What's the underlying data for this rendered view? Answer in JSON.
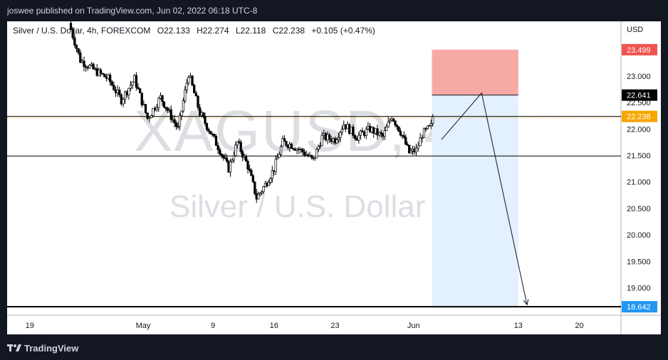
{
  "header": {
    "published": "joswee published on TradingView.com, Jun 02, 2022 06:18 UTC-8"
  },
  "legend": {
    "symbol": "Silver / U.S. Dollar, 4h, FOREXCOM",
    "open": "O22.133",
    "high": "H22.274",
    "low": "L22.118",
    "close": "C22.238",
    "change": "+0.105 (+0.47%)"
  },
  "watermark": {
    "ticker": "XAGUSD, 4h",
    "name": "Silver / U.S. Dollar"
  },
  "footer": {
    "brand": "TradingView",
    "logo_icon": "tradingview-logo-icon"
  },
  "chart_data": {
    "type": "candlestick",
    "currency": "USD",
    "ylim": [
      18.55,
      23.9
    ],
    "yticks": [
      23.0,
      22.5,
      22.0,
      21.5,
      21.0,
      20.5,
      20.0,
      19.5,
      19.0
    ],
    "ytick_labels": [
      "23.000",
      "22.500",
      "22.000",
      "21.500",
      "21.000",
      "20.500",
      "20.000",
      "19.500",
      "19.000"
    ],
    "xticks": [
      {
        "label": "19",
        "day": -12
      },
      {
        "label": "May",
        "day": 1
      },
      {
        "label": "9",
        "day": 9
      },
      {
        "label": "16",
        "day": 16
      },
      {
        "label": "23",
        "day": 23
      },
      {
        "label": "Jun",
        "day": 32
      },
      {
        "label": "13",
        "day": 44
      },
      {
        "label": "20",
        "day": 51
      }
    ],
    "price_labels": [
      {
        "text": "23.499",
        "value": 23.499,
        "color": "#ef5350"
      },
      {
        "text": "22.641",
        "value": 22.641,
        "color": "#000000"
      },
      {
        "text": "22.238",
        "value": 22.238,
        "color": "#f7a600"
      },
      {
        "text": "18.642",
        "value": 18.642,
        "color": "#2196f3"
      }
    ],
    "horizontal_lines": [
      22.238,
      21.49,
      18.642
    ],
    "short_position": {
      "entry": 22.641,
      "stop": 23.499,
      "target": 18.642,
      "start_day": 34.1,
      "end_day": 44.0,
      "stop_color": "#f7a9a6",
      "target_color": "#e3f0fd"
    },
    "projection_path": [
      {
        "day": 35.2,
        "price": 21.8
      },
      {
        "day": 39.8,
        "price": 22.68
      },
      {
        "day": 45.0,
        "price": 18.68
      }
    ],
    "price_path": [
      {
        "day": -7.5,
        "price": 24.0
      },
      {
        "day": -6.2,
        "price": 23.3
      },
      {
        "day": -4.5,
        "price": 23.1
      },
      {
        "day": -3.0,
        "price": 22.95
      },
      {
        "day": -1.5,
        "price": 22.55
      },
      {
        "day": 0.0,
        "price": 22.95
      },
      {
        "day": 1.5,
        "price": 22.2
      },
      {
        "day": 3.0,
        "price": 22.6
      },
      {
        "day": 4.0,
        "price": 22.3
      },
      {
        "day": 5.0,
        "price": 22.0
      },
      {
        "day": 6.2,
        "price": 23.05
      },
      {
        "day": 7.5,
        "price": 22.3
      },
      {
        "day": 8.5,
        "price": 22.0
      },
      {
        "day": 9.8,
        "price": 21.6
      },
      {
        "day": 10.8,
        "price": 21.25
      },
      {
        "day": 11.8,
        "price": 21.75
      },
      {
        "day": 13.0,
        "price": 21.3
      },
      {
        "day": 14.0,
        "price": 20.7
      },
      {
        "day": 15.0,
        "price": 20.95
      },
      {
        "day": 16.0,
        "price": 21.25
      },
      {
        "day": 17.0,
        "price": 21.75
      },
      {
        "day": 18.0,
        "price": 21.7
      },
      {
        "day": 19.5,
        "price": 21.55
      },
      {
        "day": 20.5,
        "price": 21.4
      },
      {
        "day": 21.5,
        "price": 21.85
      },
      {
        "day": 23.0,
        "price": 21.8
      },
      {
        "day": 24.0,
        "price": 22.1
      },
      {
        "day": 25.5,
        "price": 21.85
      },
      {
        "day": 27.0,
        "price": 22.0
      },
      {
        "day": 28.5,
        "price": 21.85
      },
      {
        "day": 29.5,
        "price": 22.25
      },
      {
        "day": 30.5,
        "price": 21.95
      },
      {
        "day": 31.5,
        "price": 21.55
      },
      {
        "day": 32.3,
        "price": 21.6
      },
      {
        "day": 33.0,
        "price": 21.9
      },
      {
        "day": 34.0,
        "price": 22.05
      },
      {
        "day": 34.2,
        "price": 22.238
      }
    ]
  }
}
